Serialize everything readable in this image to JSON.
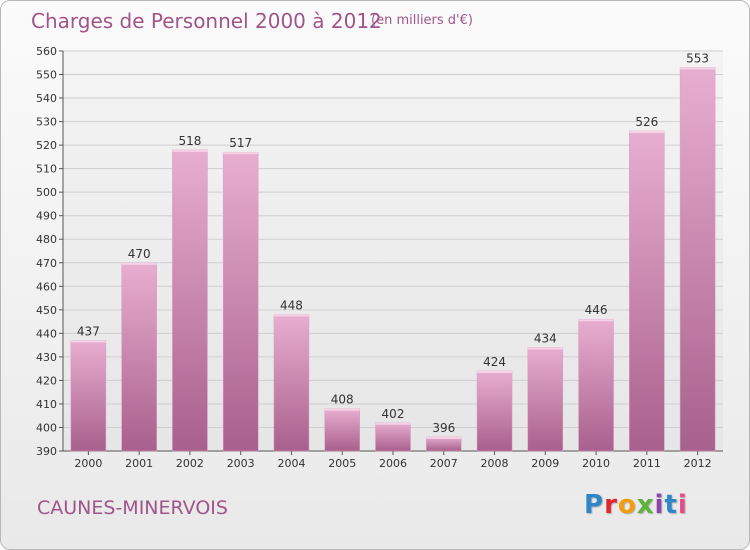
{
  "title": "Charges de Personnel 2000 à 2012",
  "subtitle": "(en milliers d'€)",
  "town": "CAUNES-MINERVOIS",
  "logo": {
    "letters": [
      "P",
      "r",
      "o",
      "x",
      "i",
      "t",
      "i"
    ],
    "colors": [
      "#2e86c8",
      "#e3262e",
      "#f39c12",
      "#5db33c",
      "#8e44ad",
      "#2e86c8",
      "#e74c8a"
    ]
  },
  "colors": {
    "bar_top": "#e8aed0",
    "bar_bottom": "#a8608c",
    "grid": "#cfcfcf",
    "axis": "#555555"
  },
  "chart_data": {
    "type": "bar",
    "categories": [
      "2000",
      "2001",
      "2002",
      "2003",
      "2004",
      "2005",
      "2006",
      "2007",
      "2008",
      "2009",
      "2010",
      "2011",
      "2012"
    ],
    "values": [
      437,
      470,
      518,
      517,
      448,
      408,
      402,
      396,
      424,
      434,
      446,
      526,
      553
    ],
    "title": "Charges de Personnel 2000 à 2012",
    "ylim": [
      390,
      560
    ],
    "yticks": [
      390,
      400,
      410,
      420,
      430,
      440,
      450,
      460,
      470,
      480,
      490,
      500,
      510,
      520,
      530,
      540,
      550,
      560
    ],
    "grid": true,
    "legend": "none"
  }
}
